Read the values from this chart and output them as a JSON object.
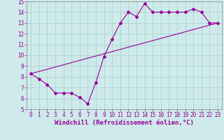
{
  "xlabel": "Windchill (Refroidissement éolien,°C)",
  "ylabel": "",
  "background_color": "#ceeaea",
  "line_color": "#990099",
  "grid_color": "#aacccc",
  "xlim": [
    -0.5,
    23.5
  ],
  "ylim": [
    5,
    15
  ],
  "xticks": [
    0,
    1,
    2,
    3,
    4,
    5,
    6,
    7,
    8,
    9,
    10,
    11,
    12,
    13,
    14,
    15,
    16,
    17,
    18,
    19,
    20,
    21,
    22,
    23
  ],
  "yticks": [
    5,
    6,
    7,
    8,
    9,
    10,
    11,
    12,
    13,
    14,
    15
  ],
  "jagged_x": [
    0,
    1,
    2,
    3,
    4,
    5,
    6,
    7,
    8,
    9,
    10,
    11,
    12,
    13,
    14,
    15,
    16,
    17,
    18,
    19,
    20,
    21,
    22,
    23
  ],
  "jagged_y": [
    8.3,
    7.8,
    7.3,
    6.5,
    6.5,
    6.5,
    6.1,
    5.5,
    7.5,
    9.9,
    11.5,
    13.0,
    14.0,
    13.6,
    14.8,
    14.0,
    14.0,
    14.0,
    14.0,
    14.0,
    14.3,
    14.0,
    13.0,
    13.0
  ],
  "trend_x": [
    0,
    23
  ],
  "trend_y": [
    8.3,
    13.0
  ],
  "font_size": 6.5,
  "tick_font_size": 5.5
}
